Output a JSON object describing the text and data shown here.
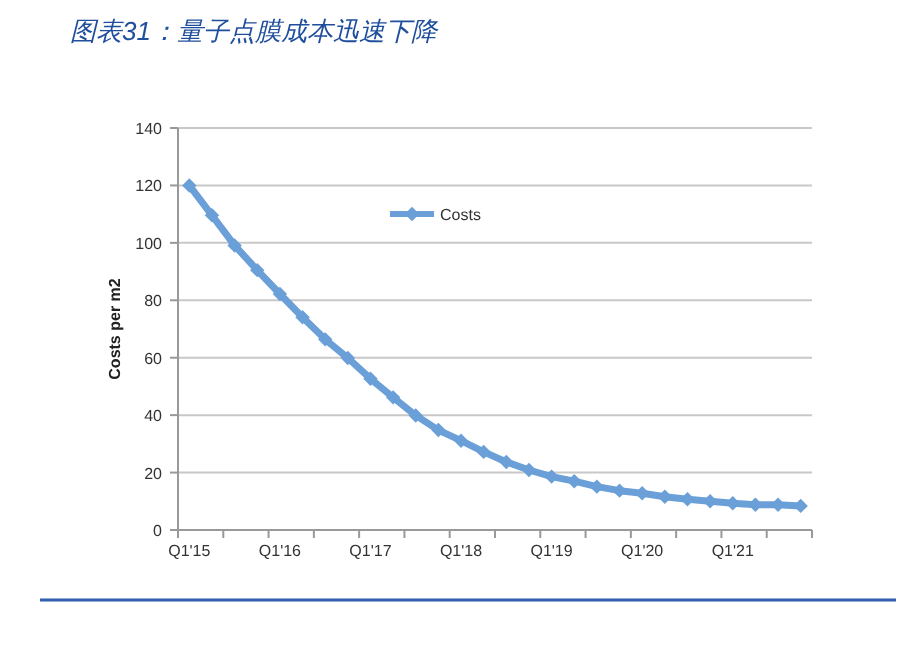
{
  "chart_data": {
    "type": "line",
    "title": "图表31：量子点膜成本迅速下降",
    "ylabel": "Costs per m2",
    "categories": [
      "Q1'15",
      null,
      null,
      null,
      "Q1'16",
      null,
      null,
      null,
      "Q1'17",
      null,
      null,
      null,
      "Q1'18",
      null,
      null,
      null,
      "Q1'19",
      null,
      null,
      null,
      "Q1'20",
      null,
      null,
      null,
      "Q1'21",
      null,
      null,
      null
    ],
    "series": [
      {
        "name": "Costs",
        "color": "#6a9fd8",
        "values": [
          120,
          109.6,
          99.1,
          90.5,
          82.2,
          74.1,
          66.4,
          59.9,
          52.7,
          46.2,
          39.9,
          34.8,
          31.1,
          27.2,
          23.7,
          20.9,
          18.6,
          17,
          15.1,
          13.7,
          12.8,
          11.6,
          10.7,
          10,
          9.3,
          8.8,
          8.8,
          8.4
        ]
      }
    ],
    "ylim": [
      0,
      140
    ],
    "yticks": [
      0,
      20,
      40,
      60,
      80,
      100,
      120,
      140
    ],
    "grid": "y",
    "legend": "top",
    "marker": "diamond",
    "line_style": "solid"
  }
}
